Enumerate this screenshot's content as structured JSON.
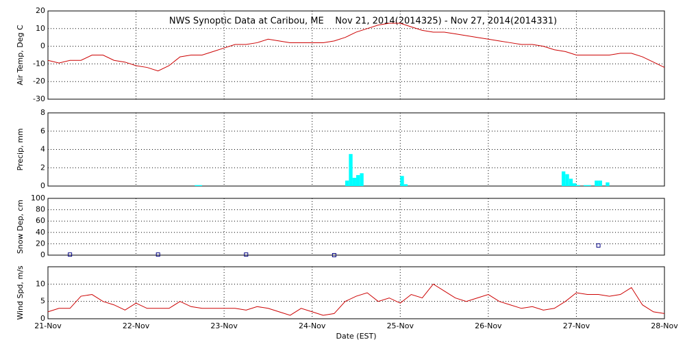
{
  "chart_data": [
    {
      "type": "line",
      "title": "NWS Synoptic Data at Caribou, ME    Nov 21, 2014(2014325) - Nov 27, 2014(2014331)",
      "ylabel": "Air Temp, Deg C",
      "color": "#cc0000",
      "grid": true,
      "xlim": [
        0,
        7
      ],
      "xticks": [
        0,
        1,
        2,
        3,
        4,
        5,
        6,
        7
      ],
      "ylim": [
        -30,
        20
      ],
      "yticks": [
        -30,
        -20,
        -10,
        0,
        10,
        20
      ],
      "x": [
        0,
        0.125,
        0.25,
        0.375,
        0.5,
        0.625,
        0.75,
        0.875,
        1,
        1.125,
        1.25,
        1.375,
        1.5,
        1.625,
        1.75,
        1.875,
        2,
        2.125,
        2.25,
        2.375,
        2.5,
        2.625,
        2.75,
        2.875,
        3,
        3.125,
        3.25,
        3.375,
        3.5,
        3.625,
        3.75,
        3.875,
        4,
        4.125,
        4.25,
        4.375,
        4.5,
        4.625,
        4.75,
        4.875,
        5,
        5.125,
        5.25,
        5.375,
        5.5,
        5.625,
        5.75,
        5.875,
        6,
        6.125,
        6.25,
        6.375,
        6.5,
        6.625,
        6.75,
        6.875,
        7
      ],
      "values": [
        -8,
        -9.5,
        -8,
        -8,
        -5,
        -5,
        -8,
        -9,
        -11,
        -12,
        -14,
        -11,
        -6,
        -5,
        -5,
        -3,
        -1,
        1,
        1,
        2,
        4,
        3,
        2,
        2,
        2,
        2,
        3,
        5,
        8,
        10,
        12,
        13,
        13,
        11,
        9,
        8,
        8,
        7,
        6,
        5,
        4,
        3,
        2,
        1,
        1,
        0,
        -2,
        -3,
        -5,
        -5,
        -5,
        -5,
        -4,
        -4,
        -6,
        -9,
        -12
      ]
    },
    {
      "type": "bar",
      "ylabel": "Precip, mm",
      "color": "#00ffff",
      "grid": true,
      "bar_width": 0.0417,
      "xlim": [
        0,
        7
      ],
      "xticks": [
        0,
        1,
        2,
        3,
        4,
        5,
        6,
        7
      ],
      "ylim": [
        0,
        8
      ],
      "yticks": [
        0,
        2,
        4,
        6,
        8
      ],
      "x": [
        1.667,
        1.708,
        3.375,
        3.417,
        3.458,
        3.5,
        3.542,
        4,
        4.042,
        5.833,
        5.875,
        5.917,
        5.958,
        6,
        6.083,
        6.125,
        6.208,
        6.25,
        6.333
      ],
      "values": [
        0.1,
        0.1,
        0.6,
        3.5,
        0.9,
        1.2,
        1.4,
        1.1,
        0.2,
        1.6,
        1.3,
        0.8,
        0.3,
        0.1,
        0.1,
        0.1,
        0.6,
        0.6,
        0.4
      ]
    },
    {
      "type": "scatter",
      "ylabel": "Snow Dep, cm",
      "color": "#000080",
      "grid": true,
      "xlim": [
        0,
        7
      ],
      "xticks": [
        0,
        1,
        2,
        3,
        4,
        5,
        6,
        7
      ],
      "ylim": [
        0,
        100
      ],
      "yticks": [
        0,
        20,
        40,
        60,
        80,
        100
      ],
      "x": [
        0.25,
        1.25,
        2.25,
        3.25,
        6.25
      ],
      "values": [
        1,
        1,
        1,
        0,
        17
      ]
    },
    {
      "type": "line",
      "ylabel": "Wind Spd, m/s",
      "xlabel": "Date (EST)",
      "color": "#cc0000",
      "grid": true,
      "xlim": [
        0,
        7
      ],
      "xticks": [
        {
          "value": 0,
          "label": "21-Nov"
        },
        {
          "value": 1,
          "label": "22-Nov"
        },
        {
          "value": 2,
          "label": "23-Nov"
        },
        {
          "value": 3,
          "label": "24-Nov"
        },
        {
          "value": 4,
          "label": "25-Nov"
        },
        {
          "value": 5,
          "label": "26-Nov"
        },
        {
          "value": 6,
          "label": "27-Nov"
        },
        {
          "value": 7,
          "label": "28-Nov"
        }
      ],
      "ylim": [
        0,
        15
      ],
      "yticks": [
        0,
        5,
        10
      ],
      "x": [
        0,
        0.125,
        0.25,
        0.375,
        0.5,
        0.625,
        0.75,
        0.875,
        1,
        1.125,
        1.25,
        1.375,
        1.5,
        1.625,
        1.75,
        1.875,
        2,
        2.125,
        2.25,
        2.375,
        2.5,
        2.625,
        2.75,
        2.875,
        3,
        3.125,
        3.25,
        3.375,
        3.5,
        3.625,
        3.75,
        3.875,
        4,
        4.125,
        4.25,
        4.375,
        4.5,
        4.625,
        4.75,
        4.875,
        5,
        5.125,
        5.25,
        5.375,
        5.5,
        5.625,
        5.75,
        5.875,
        6,
        6.125,
        6.25,
        6.375,
        6.5,
        6.625,
        6.75,
        6.875,
        7
      ],
      "values": [
        2,
        3,
        3,
        6.5,
        7,
        5,
        4,
        2.5,
        4.5,
        3,
        3,
        3,
        5,
        3.5,
        3,
        3,
        3,
        3,
        2.5,
        3.5,
        3,
        2,
        1,
        3,
        2,
        1,
        1.5,
        5,
        6.5,
        7.5,
        5,
        6,
        4.5,
        7,
        6,
        10,
        8,
        6,
        5,
        6,
        7,
        5,
        4,
        3,
        3.5,
        2.5,
        3,
        5,
        7.5,
        7,
        7,
        6.5,
        7,
        9,
        4,
        2,
        1.5
      ]
    }
  ]
}
